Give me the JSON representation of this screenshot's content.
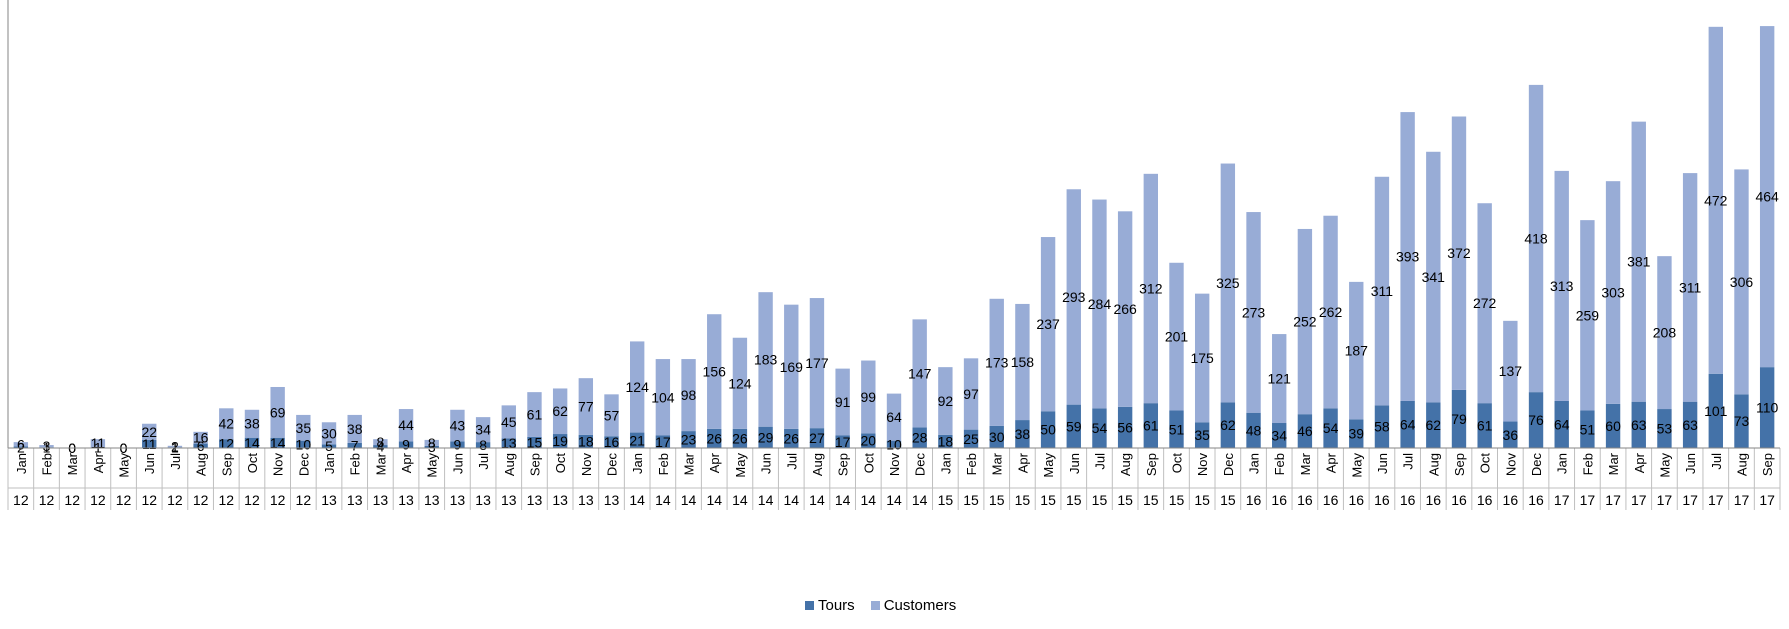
{
  "chart_data": {
    "type": "bar",
    "stacked": true,
    "grid": false,
    "legend_position": "bottom",
    "ylim": [
      0,
      585
    ],
    "categories": [
      {
        "month": "Jan",
        "year": "12"
      },
      {
        "month": "Feb",
        "year": "12"
      },
      {
        "month": "Mar",
        "year": "12"
      },
      {
        "month": "Apr",
        "year": "12"
      },
      {
        "month": "May",
        "year": "12"
      },
      {
        "month": "Jun",
        "year": "12"
      },
      {
        "month": "Jul",
        "year": "12"
      },
      {
        "month": "Aug",
        "year": "12"
      },
      {
        "month": "Sep",
        "year": "12"
      },
      {
        "month": "Oct",
        "year": "12"
      },
      {
        "month": "Nov",
        "year": "12"
      },
      {
        "month": "Dec",
        "year": "12"
      },
      {
        "month": "Jan",
        "year": "13"
      },
      {
        "month": "Feb",
        "year": "13"
      },
      {
        "month": "Mar",
        "year": "13"
      },
      {
        "month": "Apr",
        "year": "13"
      },
      {
        "month": "May",
        "year": "13"
      },
      {
        "month": "Jun",
        "year": "13"
      },
      {
        "month": "Jul",
        "year": "13"
      },
      {
        "month": "Aug",
        "year": "13"
      },
      {
        "month": "Sep",
        "year": "13"
      },
      {
        "month": "Oct",
        "year": "13"
      },
      {
        "month": "Nov",
        "year": "13"
      },
      {
        "month": "Dec",
        "year": "13"
      },
      {
        "month": "Jan",
        "year": "14"
      },
      {
        "month": "Feb",
        "year": "14"
      },
      {
        "month": "Mar",
        "year": "14"
      },
      {
        "month": "Apr",
        "year": "14"
      },
      {
        "month": "May",
        "year": "14"
      },
      {
        "month": "Jun",
        "year": "14"
      },
      {
        "month": "Jul",
        "year": "14"
      },
      {
        "month": "Aug",
        "year": "14"
      },
      {
        "month": "Sep",
        "year": "14"
      },
      {
        "month": "Oct",
        "year": "14"
      },
      {
        "month": "Nov",
        "year": "14"
      },
      {
        "month": "Dec",
        "year": "14"
      },
      {
        "month": "Jan",
        "year": "15"
      },
      {
        "month": "Feb",
        "year": "15"
      },
      {
        "month": "Mar",
        "year": "15"
      },
      {
        "month": "Apr",
        "year": "15"
      },
      {
        "month": "May",
        "year": "15"
      },
      {
        "month": "Jun",
        "year": "15"
      },
      {
        "month": "Jul",
        "year": "15"
      },
      {
        "month": "Aug",
        "year": "15"
      },
      {
        "month": "Sep",
        "year": "15"
      },
      {
        "month": "Oct",
        "year": "15"
      },
      {
        "month": "Nov",
        "year": "15"
      },
      {
        "month": "Dec",
        "year": "15"
      },
      {
        "month": "Jan",
        "year": "16"
      },
      {
        "month": "Feb",
        "year": "16"
      },
      {
        "month": "Mar",
        "year": "16"
      },
      {
        "month": "Apr",
        "year": "16"
      },
      {
        "month": "May",
        "year": "16"
      },
      {
        "month": "Jun",
        "year": "16"
      },
      {
        "month": "Jul",
        "year": "16"
      },
      {
        "month": "Aug",
        "year": "16"
      },
      {
        "month": "Sep",
        "year": "16"
      },
      {
        "month": "Oct",
        "year": "16"
      },
      {
        "month": "Nov",
        "year": "16"
      },
      {
        "month": "Dec",
        "year": "16"
      },
      {
        "month": "Jan",
        "year": "17"
      },
      {
        "month": "Feb",
        "year": "17"
      },
      {
        "month": "Mar",
        "year": "17"
      },
      {
        "month": "Apr",
        "year": "17"
      },
      {
        "month": "May",
        "year": "17"
      },
      {
        "month": "Jun",
        "year": "17"
      },
      {
        "month": "Jul",
        "year": "17"
      },
      {
        "month": "Aug",
        "year": "17"
      },
      {
        "month": "Sep",
        "year": "17"
      }
    ],
    "series": [
      {
        "name": "Tours",
        "color": "#4472a8",
        "values": [
          2,
          1,
          0,
          1,
          0,
          11,
          1,
          6,
          12,
          14,
          14,
          10,
          5,
          7,
          4,
          9,
          3,
          9,
          8,
          13,
          15,
          19,
          18,
          16,
          21,
          17,
          23,
          26,
          26,
          29,
          26,
          27,
          17,
          20,
          10,
          28,
          18,
          25,
          30,
          38,
          50,
          59,
          54,
          56,
          61,
          51,
          35,
          62,
          48,
          34,
          46,
          54,
          39,
          58,
          64,
          62,
          79,
          61,
          36,
          76,
          64,
          51,
          60,
          63,
          53,
          63,
          101,
          73,
          110
        ]
      },
      {
        "name": "Customers",
        "color": "#98acd6",
        "values": [
          6,
          3,
          0,
          11,
          0,
          22,
          2,
          16,
          42,
          38,
          69,
          35,
          30,
          38,
          8,
          44,
          8,
          43,
          34,
          45,
          61,
          62,
          77,
          57,
          124,
          104,
          98,
          156,
          124,
          183,
          169,
          177,
          91,
          99,
          64,
          147,
          92,
          97,
          173,
          158,
          237,
          293,
          284,
          266,
          312,
          201,
          175,
          325,
          273,
          121,
          252,
          262,
          187,
          311,
          393,
          341,
          372,
          272,
          137,
          418,
          313,
          259,
          303,
          381,
          208,
          311,
          472,
          306,
          464
        ]
      }
    ]
  }
}
